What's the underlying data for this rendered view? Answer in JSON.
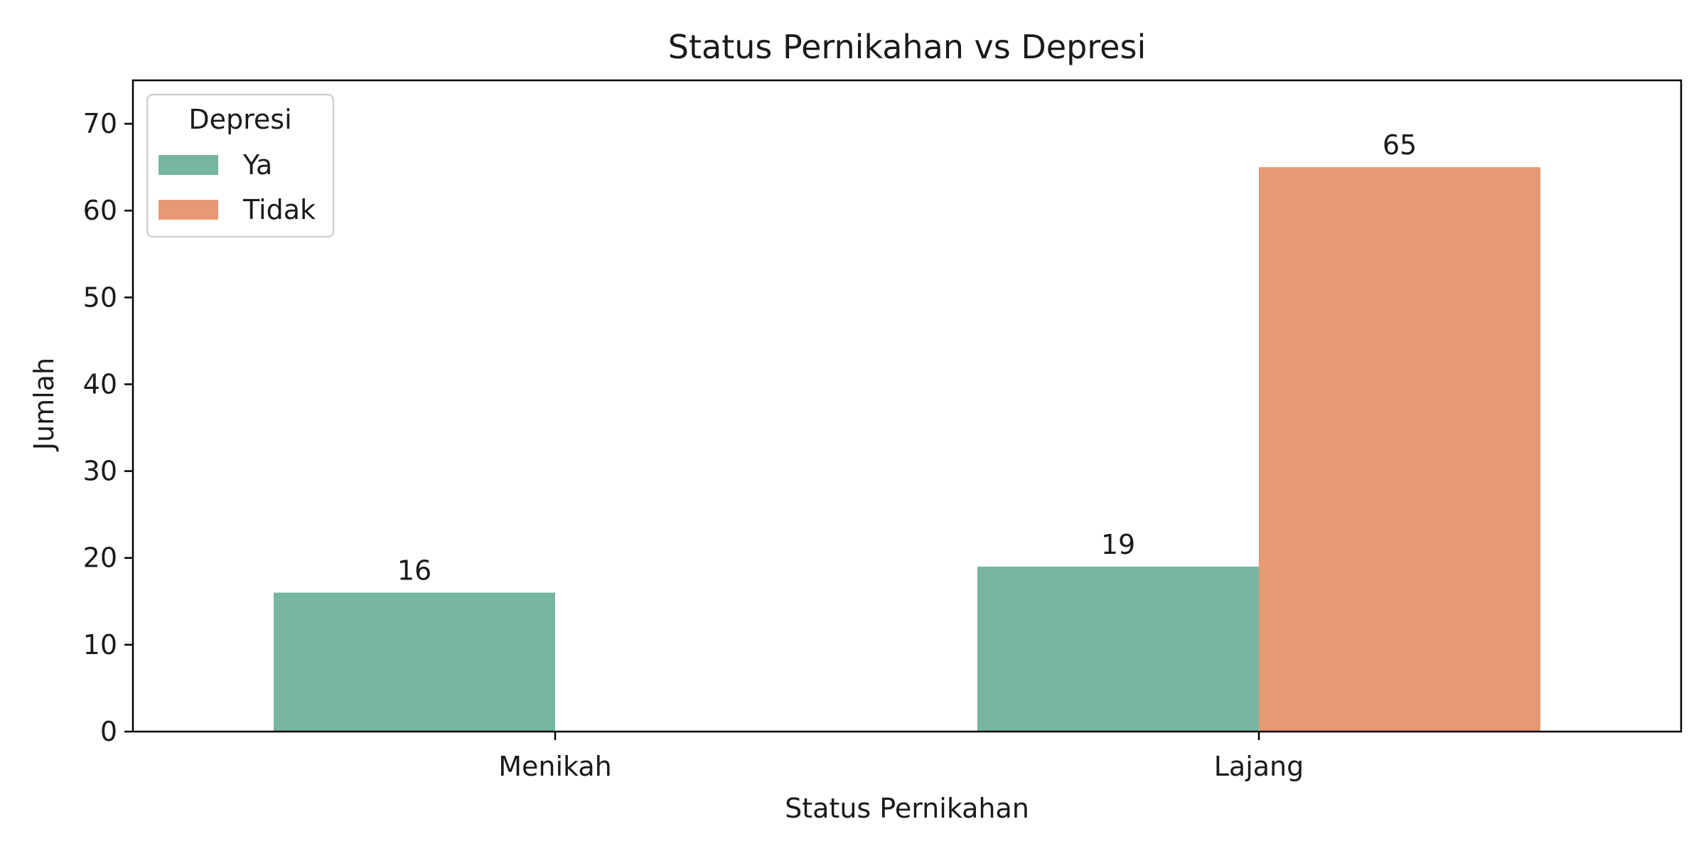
{
  "chart_data": {
    "type": "bar",
    "title": "Status Pernikahan vs Depresi",
    "xlabel": "Status Pernikahan",
    "ylabel": "Jumlah",
    "categories": [
      "Menikah",
      "Lajang"
    ],
    "series": [
      {
        "name": "Ya",
        "color": "#76b5a0",
        "values": [
          16,
          19
        ]
      },
      {
        "name": "Tidak",
        "color": "#e89875",
        "values": [
          0,
          65
        ]
      }
    ],
    "data_labels": [
      {
        "category": "Menikah",
        "series": "Ya",
        "value": 16,
        "text": "16"
      },
      {
        "category": "Lajang",
        "series": "Ya",
        "value": 19,
        "text": "19"
      },
      {
        "category": "Lajang",
        "series": "Tidak",
        "value": 65,
        "text": "65"
      }
    ],
    "ylim": [
      0,
      75
    ],
    "yticks": [
      0,
      10,
      20,
      30,
      40,
      50,
      60,
      70
    ],
    "grid": false,
    "legend": {
      "title": "Depresi",
      "placement": "top-left",
      "entries": [
        "Ya",
        "Tidak"
      ]
    }
  }
}
